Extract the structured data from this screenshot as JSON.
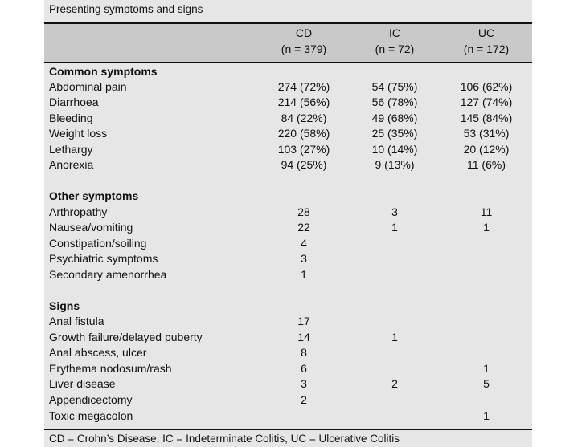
{
  "caption": "Presenting symptoms and signs",
  "columns": [
    {
      "name": "CD",
      "n": "(n = 379)"
    },
    {
      "name": "IC",
      "n": "(n = 72)"
    },
    {
      "name": "UC",
      "n": "(n = 172)"
    }
  ],
  "sections": [
    {
      "title": "Common symptoms",
      "rows": [
        {
          "label": "Abdominal pain",
          "values": [
            "274 (72%)",
            "54 (75%)",
            "106 (62%)"
          ]
        },
        {
          "label": "Diarrhoea",
          "values": [
            "214 (56%)",
            "56 (78%)",
            "127 (74%)"
          ]
        },
        {
          "label": "Bleeding",
          "values": [
            "84 (22%)",
            "49 (68%)",
            "145 (84%)"
          ]
        },
        {
          "label": "Weight loss",
          "values": [
            "220 (58%)",
            "25 (35%)",
            "53 (31%)"
          ]
        },
        {
          "label": "Lethargy",
          "values": [
            "103 (27%)",
            "10 (14%)",
            "20 (12%)"
          ]
        },
        {
          "label": "Anorexia",
          "values": [
            "94 (25%)",
            "9 (13%)",
            "11 (6%)"
          ]
        }
      ]
    },
    {
      "title": "Other symptoms",
      "rows": [
        {
          "label": "Arthropathy",
          "values": [
            "28",
            "3",
            "11"
          ]
        },
        {
          "label": "Nausea/vomiting",
          "values": [
            "22",
            "1",
            "1"
          ]
        },
        {
          "label": "Constipation/soiling",
          "values": [
            "4",
            "",
            ""
          ]
        },
        {
          "label": "Psychiatric symptoms",
          "values": [
            "3",
            "",
            ""
          ]
        },
        {
          "label": "Secondary amenorrhea",
          "values": [
            "1",
            "",
            ""
          ]
        }
      ]
    },
    {
      "title": "Signs",
      "rows": [
        {
          "label": "Anal fistula",
          "values": [
            "17",
            "",
            ""
          ]
        },
        {
          "label": "Growth failure/delayed puberty",
          "values": [
            "14",
            "1",
            ""
          ]
        },
        {
          "label": "Anal abscess, ulcer",
          "values": [
            "8",
            "",
            ""
          ]
        },
        {
          "label": "Erythema nodosum/rash",
          "values": [
            "6",
            "",
            "1"
          ]
        },
        {
          "label": "Liver disease",
          "values": [
            "3",
            "2",
            "5"
          ]
        },
        {
          "label": "Appendicectomy",
          "values": [
            "2",
            "",
            ""
          ]
        },
        {
          "label": "Toxic megacolon",
          "values": [
            "",
            "",
            "1"
          ]
        }
      ]
    }
  ],
  "footnote": "CD = Crohn’s Disease, IC = Indeterminate Colitis, UC = Ulcerative Colitis"
}
